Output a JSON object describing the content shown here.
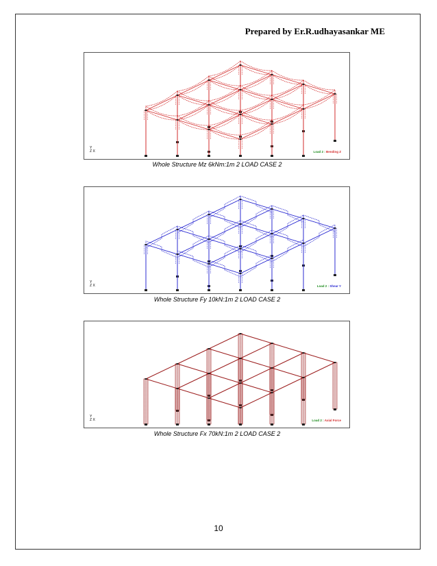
{
  "header": {
    "text": "Prepared by Er.R.udhayasankar ME"
  },
  "figures": [
    {
      "caption": "Whole Structure Mz 6kNm:1m 2 LOAD CASE 2",
      "legend_load": "Load 2 :",
      "legend_type": "Bending Z",
      "color": "#d22b2b",
      "load_color": "#1a8a1a",
      "type_color": "#d22b2b",
      "style": "bending"
    },
    {
      "caption": "Whole Structure Fy 10kN:1m 2 LOAD CASE 2",
      "legend_load": "Load 2 :",
      "legend_type": "Shear Y",
      "color": "#2b2bd2",
      "load_color": "#1a8a1a",
      "type_color": "#2b2bd2",
      "style": "shear"
    },
    {
      "caption": "Whole Structure Fx 70kN:1m 2 LOAD CASE 2",
      "legend_load": "Load 2 :",
      "legend_type": "Axial Force",
      "color": "#9b1c1c",
      "load_color": "#1a8a1a",
      "type_color": "#d22b2b",
      "style": "axial"
    }
  ],
  "axis_labels": {
    "y": "Y",
    "x": "X",
    "z": "Z"
  },
  "page_number": "10"
}
